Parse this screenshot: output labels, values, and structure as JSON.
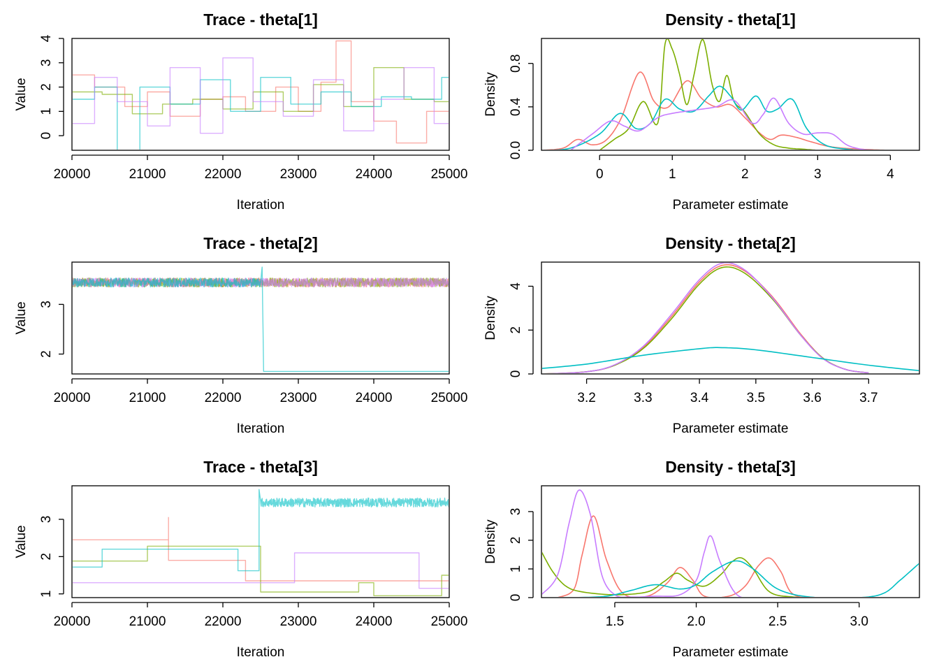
{
  "chart_data": [
    {
      "type": "line",
      "title": "Trace - theta[1]",
      "xlabel": "Iteration",
      "ylabel": "Value",
      "xlim": [
        20000,
        25000
      ],
      "ylim": [
        -0.6,
        4.0
      ],
      "xticks": [
        20000,
        21000,
        22000,
        23000,
        24000,
        25000
      ],
      "yticks": [
        0,
        1,
        2,
        3,
        4
      ],
      "series": [
        {
          "color": "#F8766D",
          "x": [
            20000,
            20300,
            20700,
            21000,
            21300,
            21700,
            22000,
            22300,
            22700,
            23000,
            23300,
            23500,
            23700,
            24000,
            24300,
            24700,
            25000
          ],
          "y": [
            2.5,
            2.0,
            1.2,
            1.8,
            0.8,
            1.5,
            1.6,
            1.0,
            2.0,
            1.0,
            2.2,
            3.9,
            1.4,
            0.6,
            -0.3,
            1.0,
            0.4
          ]
        },
        {
          "color": "#7CAE00",
          "x": [
            20000,
            20400,
            20800,
            21200,
            21600,
            22000,
            22400,
            22800,
            23200,
            23600,
            24000,
            24400,
            24800,
            25000
          ],
          "y": [
            1.8,
            1.7,
            0.9,
            1.3,
            1.5,
            1.1,
            1.8,
            1.0,
            2.1,
            1.2,
            2.8,
            1.5,
            1.4,
            1.5
          ]
        },
        {
          "color": "#00BFC4",
          "x": [
            20000,
            20300,
            20600,
            20900,
            21300,
            21700,
            22100,
            22500,
            22900,
            23300,
            23700,
            24100,
            24500,
            24900,
            25000
          ],
          "y": [
            1.5,
            2.0,
            -0.6,
            2.0,
            1.3,
            2.3,
            1.0,
            2.4,
            1.3,
            1.8,
            1.2,
            1.6,
            1.5,
            2.4,
            0.6
          ]
        },
        {
          "color": "#C77CFF",
          "x": [
            20000,
            20300,
            20600,
            21000,
            21300,
            21700,
            22000,
            22400,
            22800,
            23200,
            23600,
            24000,
            24400,
            24800,
            25000
          ],
          "y": [
            0.5,
            2.4,
            1.4,
            0.4,
            2.8,
            0.1,
            3.2,
            1.4,
            0.8,
            2.3,
            0.2,
            1.5,
            2.8,
            0.5,
            1.7
          ]
        }
      ]
    },
    {
      "type": "line",
      "title": "Density - theta[1]",
      "xlabel": "Parameter estimate",
      "ylabel": "Density",
      "xlim": [
        -0.8,
        4.4
      ],
      "ylim": [
        0.0,
        1.03
      ],
      "xticks": [
        0,
        1,
        2,
        3,
        4
      ],
      "yticks": [
        0.0,
        0.4,
        0.8
      ],
      "series": [
        {
          "color": "#F8766D",
          "x": [
            -0.8,
            -0.5,
            -0.3,
            -0.1,
            0.1,
            0.3,
            0.55,
            0.75,
            0.95,
            1.2,
            1.4,
            1.6,
            1.8,
            2.0,
            2.2,
            2.35,
            2.5,
            2.7,
            2.9,
            3.2,
            3.6,
            4.0,
            4.2
          ],
          "y": [
            0.0,
            0.02,
            0.1,
            0.05,
            0.1,
            0.3,
            0.72,
            0.45,
            0.4,
            0.64,
            0.48,
            0.4,
            0.42,
            0.3,
            0.16,
            0.1,
            0.14,
            0.12,
            0.08,
            0.03,
            0.01,
            0.0,
            0.0
          ]
        },
        {
          "color": "#7CAE00",
          "x": [
            0.0,
            0.2,
            0.4,
            0.6,
            0.8,
            0.9,
            1.0,
            1.1,
            1.2,
            1.3,
            1.42,
            1.55,
            1.65,
            1.75,
            1.85,
            2.0,
            2.2,
            2.4,
            2.6,
            2.8,
            3.0
          ],
          "y": [
            0.0,
            0.1,
            0.2,
            0.45,
            0.25,
            0.98,
            0.93,
            0.7,
            0.42,
            0.7,
            1.02,
            0.6,
            0.45,
            0.69,
            0.45,
            0.35,
            0.15,
            0.05,
            0.02,
            0.01,
            0.0
          ]
        },
        {
          "color": "#00BFC4",
          "x": [
            -0.8,
            -0.4,
            0.0,
            0.28,
            0.5,
            0.7,
            0.9,
            1.1,
            1.3,
            1.5,
            1.65,
            1.8,
            1.95,
            2.15,
            2.3,
            2.45,
            2.65,
            2.85,
            3.1,
            3.4,
            3.6
          ],
          "y": [
            0.0,
            0.02,
            0.15,
            0.34,
            0.2,
            0.25,
            0.47,
            0.38,
            0.36,
            0.5,
            0.59,
            0.5,
            0.37,
            0.5,
            0.36,
            0.38,
            0.47,
            0.2,
            0.05,
            0.01,
            0.0
          ]
        },
        {
          "color": "#C77CFF",
          "x": [
            -0.4,
            -0.1,
            0.15,
            0.35,
            0.55,
            0.8,
            1.0,
            1.3,
            1.6,
            1.85,
            2.1,
            2.25,
            2.4,
            2.6,
            2.8,
            3.0,
            3.2,
            3.4,
            3.6,
            3.8
          ],
          "y": [
            0.0,
            0.15,
            0.27,
            0.22,
            0.18,
            0.3,
            0.34,
            0.37,
            0.4,
            0.46,
            0.25,
            0.33,
            0.48,
            0.25,
            0.15,
            0.16,
            0.15,
            0.05,
            0.01,
            0.0
          ]
        }
      ]
    },
    {
      "type": "line",
      "title": "Trace - theta[2]",
      "xlabel": "Iteration",
      "ylabel": "Value",
      "xlim": [
        20000,
        25000
      ],
      "ylim": [
        1.6,
        3.85
      ],
      "xticks": [
        20000,
        21000,
        22000,
        23000,
        24000,
        25000
      ],
      "yticks": [
        2.0,
        3.0
      ],
      "series": [
        {
          "color": "#F8766D",
          "x": [
            20000,
            25000
          ],
          "y": [
            3.44,
            3.44
          ],
          "noise": 0.09
        },
        {
          "color": "#7CAE00",
          "x": [
            20000,
            25000
          ],
          "y": [
            3.44,
            3.44
          ],
          "noise": 0.09
        },
        {
          "color": "#C77CFF",
          "x": [
            20000,
            25000
          ],
          "y": [
            3.44,
            3.44
          ],
          "noise": 0.09
        },
        {
          "color": "#00BFC4",
          "x": [
            20000,
            22500,
            22520,
            22540,
            25000
          ],
          "y": [
            3.44,
            3.44,
            3.75,
            1.65,
            1.65
          ],
          "noise": 0.09
        }
      ]
    },
    {
      "type": "line",
      "title": "Density - theta[2]",
      "xlabel": "Parameter estimate",
      "ylabel": "Density",
      "xlim": [
        3.12,
        3.79
      ],
      "ylim": [
        0.0,
        5.1
      ],
      "xticks": [
        3.2,
        3.3,
        3.4,
        3.5,
        3.6,
        3.7
      ],
      "yticks": [
        0,
        2,
        4
      ],
      "series": [
        {
          "color": "#F8766D",
          "x": [
            3.12,
            3.2,
            3.25,
            3.3,
            3.35,
            3.4,
            3.44,
            3.48,
            3.53,
            3.58,
            3.62,
            3.66,
            3.7
          ],
          "y": [
            0.0,
            0.1,
            0.4,
            1.2,
            2.6,
            4.2,
            4.95,
            4.7,
            3.5,
            1.8,
            0.7,
            0.2,
            0.05
          ]
        },
        {
          "color": "#7CAE00",
          "x": [
            3.12,
            3.2,
            3.25,
            3.3,
            3.35,
            3.4,
            3.44,
            3.48,
            3.53,
            3.58,
            3.62,
            3.66,
            3.7
          ],
          "y": [
            0.0,
            0.1,
            0.4,
            1.15,
            2.5,
            4.1,
            4.85,
            4.6,
            3.4,
            1.75,
            0.7,
            0.2,
            0.05
          ]
        },
        {
          "color": "#C77CFF",
          "x": [
            3.12,
            3.2,
            3.25,
            3.3,
            3.35,
            3.4,
            3.44,
            3.48,
            3.53,
            3.58,
            3.62,
            3.66,
            3.7
          ],
          "y": [
            0.0,
            0.1,
            0.42,
            1.25,
            2.7,
            4.3,
            5.05,
            4.75,
            3.45,
            1.75,
            0.68,
            0.2,
            0.05
          ]
        },
        {
          "color": "#00BFC4",
          "x": [
            3.12,
            3.2,
            3.3,
            3.4,
            3.44,
            3.5,
            3.6,
            3.7,
            3.79
          ],
          "y": [
            0.25,
            0.45,
            0.85,
            1.15,
            1.2,
            1.1,
            0.75,
            0.4,
            0.15
          ]
        }
      ]
    },
    {
      "type": "line",
      "title": "Trace - theta[3]",
      "xlabel": "Iteration",
      "ylabel": "Value",
      "xlim": [
        20000,
        25000
      ],
      "ylim": [
        0.9,
        3.9
      ],
      "xticks": [
        20000,
        21000,
        22000,
        23000,
        24000,
        25000
      ],
      "yticks": [
        1.0,
        2.0,
        3.0
      ],
      "series": [
        {
          "color": "#F8766D",
          "x": [
            20000,
            21280,
            21280,
            21280,
            22300,
            22300,
            25000
          ],
          "y": [
            2.45,
            2.45,
            3.05,
            1.9,
            1.9,
            1.35,
            1.35
          ]
        },
        {
          "color": "#7CAE00",
          "x": [
            20000,
            21000,
            21000,
            22500,
            22500,
            23800,
            23800,
            24000,
            24000,
            24900,
            24900,
            25000
          ],
          "y": [
            1.88,
            1.88,
            2.28,
            2.28,
            1.05,
            1.05,
            1.3,
            1.3,
            0.95,
            0.95,
            1.5,
            1.5
          ]
        },
        {
          "color": "#C77CFF",
          "x": [
            20000,
            22950,
            22950,
            24600,
            24600,
            25000
          ],
          "y": [
            1.3,
            1.3,
            2.1,
            2.1,
            1.15,
            1.15
          ]
        },
        {
          "color": "#00BFC4",
          "x": [
            20000,
            20400,
            20400,
            22200,
            22200,
            22480,
            22480,
            22500,
            25000
          ],
          "y": [
            1.72,
            1.72,
            2.2,
            2.2,
            1.62,
            1.62,
            3.8,
            3.45,
            3.45
          ],
          "noise_after": 22500,
          "noise": 0.12
        }
      ]
    },
    {
      "type": "line",
      "title": "Density - theta[3]",
      "xlabel": "Parameter estimate",
      "ylabel": "Density",
      "xlim": [
        1.05,
        3.37
      ],
      "ylim": [
        0.0,
        3.9
      ],
      "xticks": [
        1.5,
        2.0,
        2.5,
        3.0
      ],
      "yticks": [
        0,
        1,
        2,
        3
      ],
      "series": [
        {
          "color": "#F8766D",
          "x": [
            1.15,
            1.25,
            1.3,
            1.37,
            1.45,
            1.55,
            1.7,
            1.82,
            1.9,
            1.98,
            2.05,
            2.2,
            2.3,
            2.38,
            2.45,
            2.52,
            2.6,
            2.8,
            3.28
          ],
          "y": [
            0.0,
            0.3,
            1.5,
            2.85,
            1.3,
            0.15,
            0.05,
            0.5,
            1.05,
            0.6,
            0.05,
            0.05,
            0.4,
            1.1,
            1.38,
            0.9,
            0.1,
            0.0,
            0.0
          ]
        },
        {
          "color": "#7CAE00",
          "x": [
            1.05,
            1.12,
            1.2,
            1.3,
            1.5,
            1.7,
            1.8,
            1.88,
            1.95,
            2.05,
            2.15,
            2.22,
            2.28,
            2.35,
            2.45,
            2.6,
            2.8
          ],
          "y": [
            1.6,
            0.9,
            0.4,
            0.2,
            0.1,
            0.2,
            0.55,
            0.85,
            0.6,
            0.4,
            0.8,
            1.25,
            1.38,
            1.0,
            0.2,
            0.02,
            0.0
          ]
        },
        {
          "color": "#C77CFF",
          "x": [
            1.05,
            1.15,
            1.22,
            1.28,
            1.35,
            1.42,
            1.5,
            1.6,
            1.75,
            1.9,
            2.0,
            2.05,
            2.09,
            2.15,
            2.25,
            2.4,
            2.7
          ],
          "y": [
            0.1,
            0.8,
            2.6,
            3.75,
            2.9,
            0.8,
            0.1,
            0.02,
            0.05,
            0.1,
            0.6,
            1.6,
            2.15,
            1.2,
            0.1,
            0.0,
            0.0
          ]
        },
        {
          "color": "#00BFC4",
          "x": [
            1.25,
            1.45,
            1.6,
            1.75,
            1.9,
            2.0,
            2.1,
            2.24,
            2.35,
            2.5,
            2.7,
            3.0,
            3.15,
            3.25,
            3.37
          ],
          "y": [
            0.0,
            0.05,
            0.25,
            0.45,
            0.3,
            0.45,
            0.9,
            1.28,
            1.0,
            0.3,
            0.02,
            0.0,
            0.15,
            0.6,
            1.2
          ]
        }
      ]
    }
  ]
}
